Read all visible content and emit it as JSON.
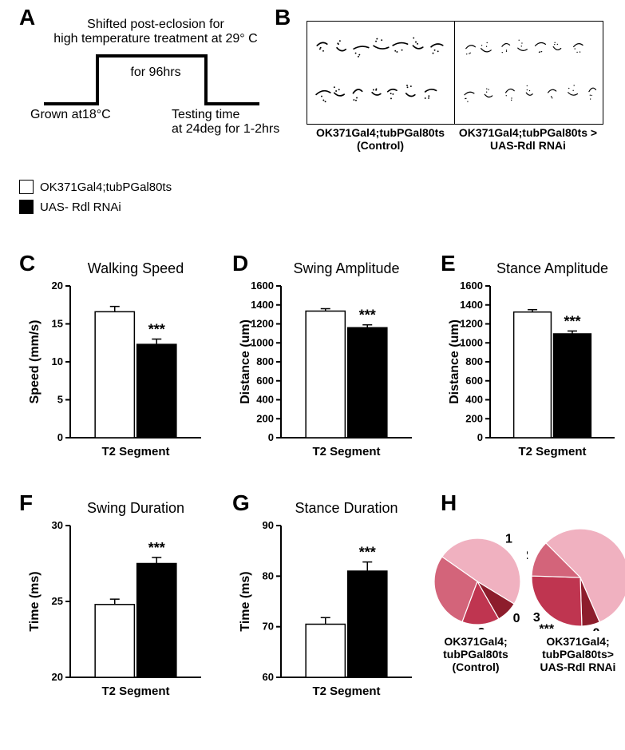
{
  "panelLabels": {
    "A": "A",
    "B": "B",
    "C": "C",
    "D": "D",
    "E": "E",
    "F": "F",
    "G": "G",
    "H": "H"
  },
  "panelA": {
    "line1": "Shifted post-eclosion for",
    "line2": "high temperature treatment at 29° C",
    "mid": "for 96hrs",
    "bl": "Grown at18°C",
    "br1": "Testing time",
    "br2": "at 24deg for 1-2hrs"
  },
  "legend": {
    "control": "OK371Gal4;tubPGal80ts",
    "rnai": "UAS- Rdl RNAi",
    "color_control": "#ffffff",
    "color_rnai": "#000000",
    "border": "#000000"
  },
  "panelB": {
    "left_label": "OK371Gal4;tubPGal80ts\n(Control)",
    "right_label": "OK371Gal4;tubPGal80ts >\nUAS-Rdl RNAi"
  },
  "charts": {
    "common": {
      "xcat": "T2 Segment",
      "axis_color": "#000000",
      "tick_fontsize": 13,
      "label_fontsize": 16,
      "bar_border": "#000000",
      "err_cap": 6
    },
    "C": {
      "title": "Walking Speed",
      "ylabel": "Speed (mm/s)",
      "ylim": [
        0,
        20
      ],
      "yticks": [
        0,
        5,
        10,
        15,
        20
      ],
      "bars": [
        {
          "label": "control",
          "value": 16.6,
          "err": 0.7,
          "fill": "#ffffff"
        },
        {
          "label": "rnai",
          "value": 12.3,
          "err": 0.7,
          "fill": "#000000"
        }
      ],
      "sig": "***",
      "sig_over": 1
    },
    "D": {
      "title": "Swing Amplitude",
      "ylabel": "Distance (um)",
      "ylim": [
        0,
        1600
      ],
      "yticks": [
        0,
        200,
        400,
        600,
        800,
        1000,
        1200,
        1400,
        1600
      ],
      "bars": [
        {
          "label": "control",
          "value": 1335,
          "err": 25,
          "fill": "#ffffff"
        },
        {
          "label": "rnai",
          "value": 1160,
          "err": 30,
          "fill": "#000000"
        }
      ],
      "sig": "***",
      "sig_over": 1
    },
    "E": {
      "title": "Stance Amplitude",
      "ylabel": "Distance (um)",
      "ylim": [
        0,
        1600
      ],
      "yticks": [
        0,
        200,
        400,
        600,
        800,
        1000,
        1200,
        1400,
        1600
      ],
      "bars": [
        {
          "label": "control",
          "value": 1325,
          "err": 25,
          "fill": "#ffffff"
        },
        {
          "label": "rnai",
          "value": 1095,
          "err": 30,
          "fill": "#000000"
        }
      ],
      "sig": "***",
      "sig_over": 1
    },
    "F": {
      "title": "Swing Duration",
      "ylabel": "Time (ms)",
      "ylim": [
        20,
        30
      ],
      "yticks": [
        20,
        25,
        30
      ],
      "bars": [
        {
          "label": "control",
          "value": 24.8,
          "err": 0.35,
          "fill": "#ffffff"
        },
        {
          "label": "rnai",
          "value": 27.5,
          "err": 0.4,
          "fill": "#000000"
        }
      ],
      "sig": "***",
      "sig_over": 1
    },
    "G": {
      "title": "Stance Duration",
      "ylabel": "Time (ms)",
      "ylim": [
        60,
        90
      ],
      "yticks": [
        60,
        70,
        80,
        90
      ],
      "bars": [
        {
          "label": "control",
          "value": 70.5,
          "err": 1.3,
          "fill": "#ffffff"
        },
        {
          "label": "rnai",
          "value": 81.0,
          "err": 1.8,
          "fill": "#000000"
        }
      ],
      "sig": "***",
      "sig_over": 1
    }
  },
  "panelH": {
    "colors": {
      "0": "#8d1d2c",
      "1": "#f0b1c0",
      "2": "#d3647a",
      "3": "#bf3550"
    },
    "nums": [
      "0",
      "1",
      "2",
      "3"
    ],
    "control": {
      "label": "OK371Gal4;\ntubPGal80ts\n(Control)",
      "slices": [
        {
          "key": "1",
          "frac": 0.49
        },
        {
          "key": "0",
          "frac": 0.08
        },
        {
          "key": "3",
          "frac": 0.14
        },
        {
          "key": "2",
          "frac": 0.29
        }
      ],
      "start_angle_deg": -145
    },
    "rnai": {
      "label": "OK371Gal4;\ntubPGal80ts>\nUAS-Rdl RNAi",
      "slices": [
        {
          "key": "1",
          "frac": 0.56
        },
        {
          "key": "0",
          "frac": 0.06
        },
        {
          "key": "3",
          "frac": 0.26
        },
        {
          "key": "2",
          "frac": 0.12
        }
      ],
      "start_angle_deg": -135,
      "sig": "***"
    }
  }
}
